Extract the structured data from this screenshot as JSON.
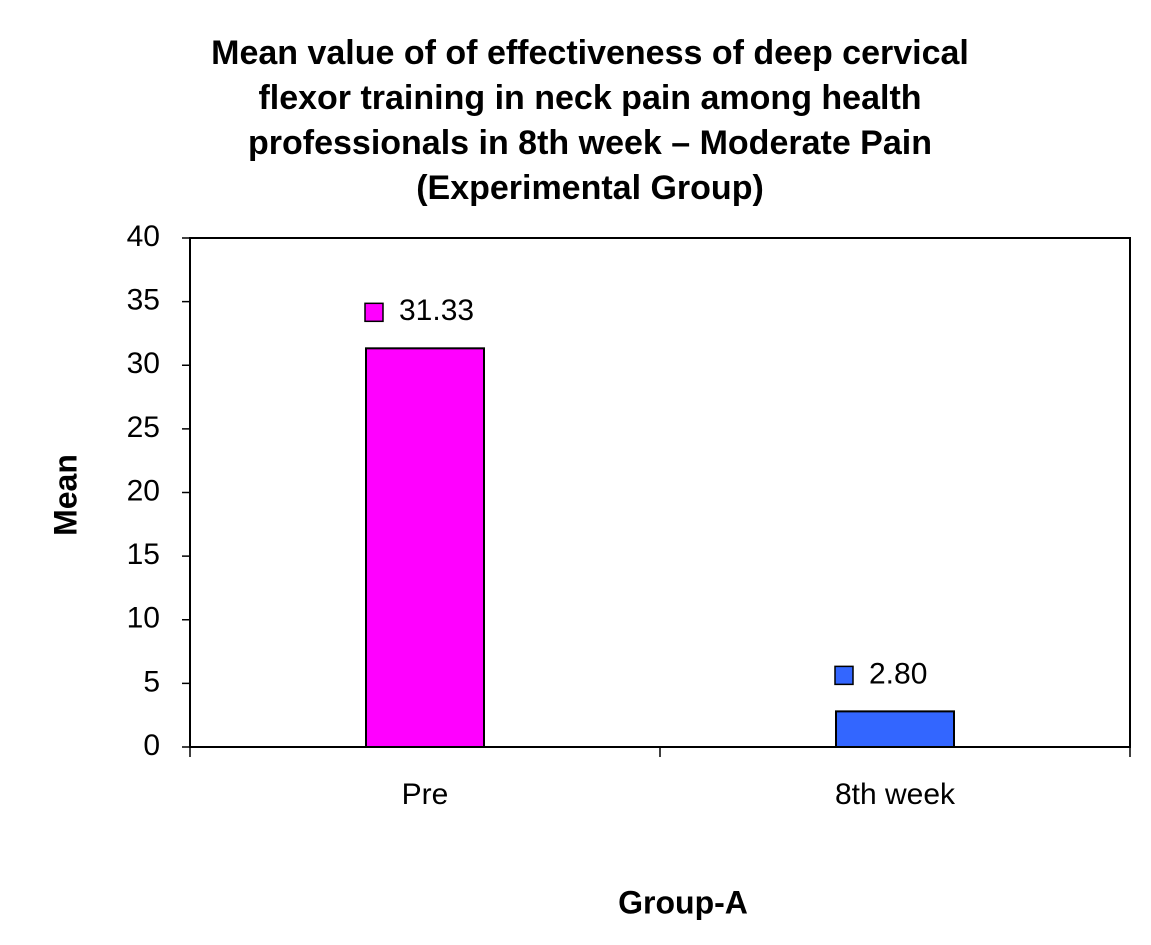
{
  "chart_data": {
    "type": "bar",
    "title": [
      "Mean value of of effectiveness of deep cervical",
      "flexor training in neck pain among health",
      "professionals in  8th week – Moderate Pain",
      "(Experimental Group)"
    ],
    "categories": [
      "Pre",
      "8th week"
    ],
    "values": [
      31.33,
      2.8
    ],
    "value_labels": [
      "31.33",
      "2.80"
    ],
    "colors": [
      "#ff00ff",
      "#3366ff"
    ],
    "x_label": "Group-A",
    "y_label": "Mean",
    "ylim": [
      0,
      40
    ],
    "yticks": [
      0,
      5,
      10,
      15,
      20,
      25,
      30,
      35,
      40
    ],
    "grid": false
  }
}
